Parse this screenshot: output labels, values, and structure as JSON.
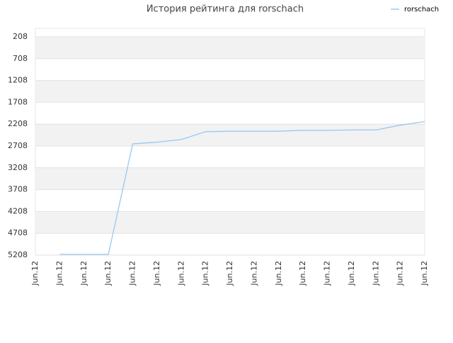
{
  "chart_data": {
    "type": "line",
    "title": "История рейтинга для rorschach",
    "categories": [
      "Jun.12",
      "Jun.12",
      "Jun.12",
      "Jun.12",
      "Jun.12",
      "Jun.12",
      "Jun.12",
      "Jun.12",
      "Jun.12",
      "Jun.12",
      "Jun.12",
      "Jun.12",
      "Jun.12",
      "Jun.12",
      "Jun.12",
      "Jun.12",
      "Jun.12"
    ],
    "series": [
      {
        "name": "rorschach",
        "color": "#99c8f0",
        "values": [
          null,
          5190,
          5190,
          5190,
          2660,
          2620,
          2560,
          2380,
          2370,
          2370,
          2370,
          2350,
          2350,
          2340,
          2340,
          2230,
          2150
        ]
      }
    ],
    "ylim": [
      5208,
      13
    ],
    "yticks": [
      208,
      708,
      1208,
      1708,
      2208,
      2708,
      3208,
      3708,
      4208,
      4708,
      5208
    ],
    "grid": true,
    "legend": "top-right"
  }
}
